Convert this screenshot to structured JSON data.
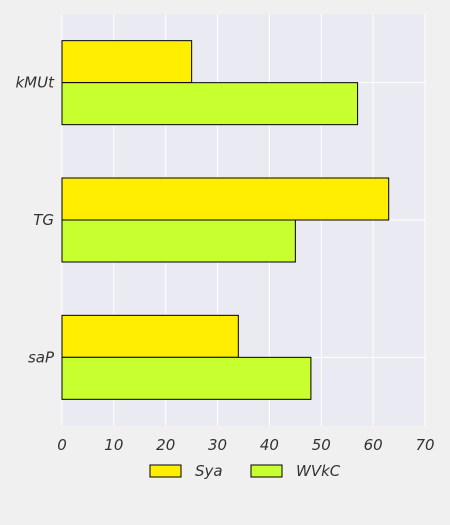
{
  "chart_data": {
    "type": "bar",
    "orientation": "horizontal",
    "categories": [
      "kMUt",
      "TG",
      "saP"
    ],
    "series": [
      {
        "name": "Sya",
        "values": [
          25,
          63,
          34
        ],
        "color": "#ffee00"
      },
      {
        "name": "WVkC",
        "values": [
          57,
          45,
          48
        ],
        "color": "#c8ff2e"
      }
    ],
    "x_ticks": [
      "0",
      "10",
      "20",
      "30",
      "40",
      "50",
      "60",
      "70"
    ],
    "xlim": [
      0,
      70
    ],
    "title": "",
    "xlabel": "",
    "ylabel": "",
    "grid": true,
    "legend_position": "bottom-center",
    "plot_background": "#eaeaf2",
    "figure_background": "#f0f0f0",
    "grid_color": "#ffffff",
    "bar_edge_color": "#000000"
  }
}
